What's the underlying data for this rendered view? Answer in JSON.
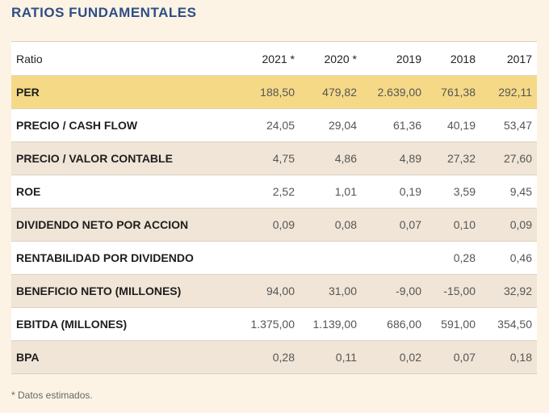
{
  "title": "RATIOS FUNDAMENTALES",
  "table": {
    "header": [
      "Ratio",
      "2021 *",
      "2020 *",
      "2019",
      "2018",
      "2017"
    ],
    "rows": [
      {
        "label": "PER",
        "values": [
          "188,50",
          "479,82",
          "2.639,00",
          "761,38",
          "292,11"
        ]
      },
      {
        "label": "PRECIO / CASH FLOW",
        "values": [
          "24,05",
          "29,04",
          "61,36",
          "40,19",
          "53,47"
        ]
      },
      {
        "label": "PRECIO / VALOR CONTABLE",
        "values": [
          "4,75",
          "4,86",
          "4,89",
          "27,32",
          "27,60"
        ]
      },
      {
        "label": "ROE",
        "values": [
          "2,52",
          "1,01",
          "0,19",
          "3,59",
          "9,45"
        ]
      },
      {
        "label": "DIVIDENDO NETO POR ACCION",
        "values": [
          "0,09",
          "0,08",
          "0,07",
          "0,10",
          "0,09"
        ]
      },
      {
        "label": "RENTABILIDAD POR DIVIDENDO",
        "values": [
          "",
          "",
          "",
          "0,28",
          "0,46"
        ]
      },
      {
        "label": "BENEFICIO NETO (MILLONES)",
        "values": [
          "94,00",
          "31,00",
          "-9,00",
          "-15,00",
          "32,92"
        ]
      },
      {
        "label": "EBITDA (MILLONES)",
        "values": [
          "1.375,00",
          "1.139,00",
          "686,00",
          "591,00",
          "354,50"
        ]
      },
      {
        "label": "BPA",
        "values": [
          "0,28",
          "0,11",
          "0,02",
          "0,07",
          "0,18"
        ]
      }
    ]
  },
  "footnote": "* Datos estimados.",
  "colors": {
    "title": "#2f4d86",
    "highlight_row": "#f5d987",
    "stripe": "#f0e5d6",
    "background": "#fcf3e4"
  }
}
